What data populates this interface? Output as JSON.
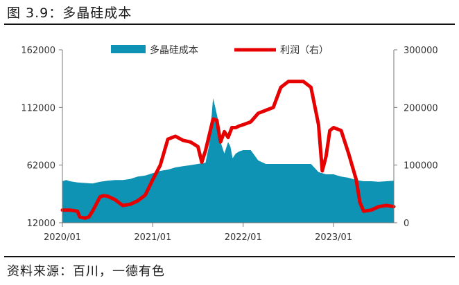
{
  "figure_title": "图 3.9：多晶硅成本",
  "source_note": "资料来源：百川，一德有色",
  "colors": {
    "cost_area": "#0f93b4",
    "profit_line": "#e60000",
    "axis": "#777777"
  },
  "chart_data": {
    "type": "area",
    "title": "多晶硅成本",
    "x_tick_labels": [
      "2020/01",
      "2021/01",
      "2022/01",
      "2023/01"
    ],
    "x_tick_months": [
      0,
      12,
      24,
      36
    ],
    "x_range_months": [
      0,
      44
    ],
    "y_left": {
      "ticks": [
        "162000",
        "112000",
        "62000",
        "12000"
      ],
      "values": [
        162000,
        112000,
        62000,
        12000
      ],
      "range": [
        12000,
        162000
      ]
    },
    "y_right": {
      "ticks": [
        "300000",
        "200000",
        "100000",
        "0"
      ],
      "values": [
        300000,
        200000,
        100000,
        0
      ],
      "range": [
        0,
        300000
      ]
    },
    "series": [
      {
        "name": "多晶硅成本",
        "kind": "area",
        "axis": "left",
        "x": [
          0,
          0.5,
          1,
          2,
          3,
          4,
          5,
          6,
          7,
          8,
          9,
          10,
          11,
          12,
          13,
          14,
          15,
          16,
          17,
          18,
          19,
          19.5,
          20,
          20.3,
          20.7,
          21,
          21.5,
          22,
          22.3,
          22.6,
          23,
          23.5,
          24,
          24.5,
          25,
          26,
          27,
          28,
          29,
          30,
          31,
          32,
          33,
          34,
          35,
          36,
          37,
          38,
          39,
          40,
          41,
          42,
          43,
          44
        ],
        "values": [
          48000,
          49000,
          48000,
          47000,
          46500,
          46000,
          47500,
          48500,
          49000,
          49000,
          50000,
          52000,
          53000,
          55000,
          57000,
          58000,
          60000,
          61000,
          62000,
          63000,
          64000,
          80000,
          120000,
          112000,
          100000,
          82000,
          72000,
          82000,
          78000,
          68000,
          72000,
          74000,
          75000,
          75000,
          75000,
          66000,
          63000,
          63000,
          63000,
          63000,
          63000,
          63000,
          63000,
          56000,
          54000,
          54000,
          52000,
          51000,
          49000,
          48000,
          48000,
          47500,
          48000,
          48500
        ]
      },
      {
        "name": "利润（右）",
        "kind": "line",
        "axis": "right",
        "x": [
          0,
          1,
          2,
          2.3,
          3,
          3.5,
          4,
          5,
          5.5,
          6,
          7,
          8,
          9,
          10,
          11,
          12,
          13,
          14,
          15,
          16,
          17,
          18,
          18.5,
          19,
          20,
          20.5,
          21,
          21.5,
          22,
          22.5,
          23,
          23.5,
          24,
          25,
          26,
          27,
          28,
          29,
          29.5,
          30,
          31,
          32,
          33,
          34,
          34.5,
          35,
          35.5,
          36,
          37,
          38,
          39,
          39.5,
          40,
          41,
          42,
          43,
          44
        ],
        "values": [
          22000,
          22000,
          20000,
          10000,
          8000,
          10000,
          20000,
          45000,
          47000,
          46000,
          40000,
          30000,
          32000,
          38000,
          48000,
          75000,
          100000,
          145000,
          150000,
          143000,
          140000,
          132000,
          105000,
          125000,
          180000,
          178000,
          140000,
          158000,
          148000,
          165000,
          165000,
          168000,
          170000,
          175000,
          190000,
          195000,
          200000,
          235000,
          240000,
          245000,
          245000,
          245000,
          235000,
          170000,
          90000,
          115000,
          160000,
          165000,
          160000,
          120000,
          75000,
          35000,
          20000,
          22000,
          28000,
          30000,
          28000
        ]
      }
    ],
    "legend": [
      "多晶硅成本",
      "利润（右）"
    ],
    "legend_position": "top-center",
    "grid": false
  }
}
